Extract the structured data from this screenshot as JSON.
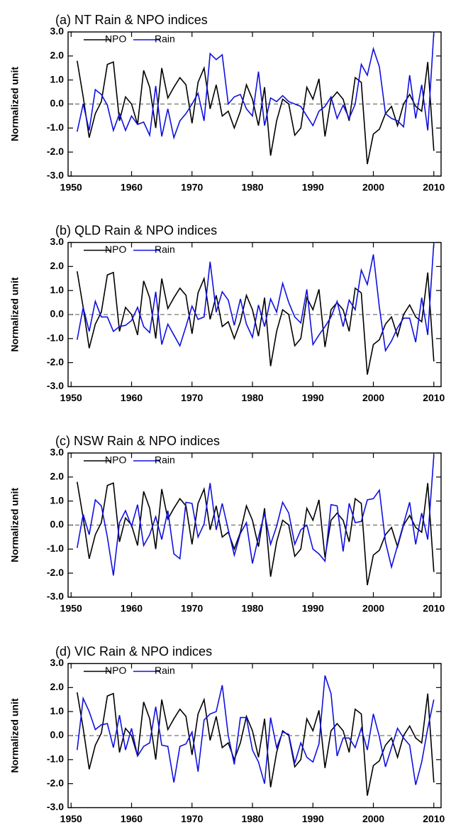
{
  "chart_data": [
    {
      "type": "line",
      "title": "(a) NT Rain & NPO indices",
      "ylabel": "Normalized unit",
      "x": [
        1951,
        1952,
        1953,
        1954,
        1955,
        1956,
        1957,
        1958,
        1959,
        1960,
        1961,
        1962,
        1963,
        1964,
        1965,
        1966,
        1967,
        1968,
        1969,
        1970,
        1971,
        1972,
        1973,
        1974,
        1975,
        1976,
        1977,
        1978,
        1979,
        1980,
        1981,
        1982,
        1983,
        1984,
        1985,
        1986,
        1987,
        1988,
        1989,
        1990,
        1991,
        1992,
        1993,
        1994,
        1995,
        1996,
        1997,
        1998,
        1999,
        2000,
        2001,
        2002,
        2003,
        2004,
        2005,
        2006,
        2007,
        2008,
        2009,
        2010
      ],
      "series": [
        {
          "name": "NPO",
          "color": "#000000",
          "values": [
            1.8,
            0.3,
            -1.4,
            -0.4,
            0.1,
            1.65,
            1.75,
            -0.7,
            0.3,
            0.0,
            -0.85,
            1.4,
            0.7,
            -1.0,
            1.5,
            0.25,
            0.7,
            1.1,
            0.8,
            -0.8,
            0.9,
            1.5,
            -0.2,
            0.8,
            -0.5,
            -0.3,
            -1.0,
            -0.3,
            0.8,
            0.2,
            -0.9,
            0.7,
            -2.15,
            -0.7,
            0.2,
            0.0,
            -1.3,
            -1.0,
            0.7,
            0.2,
            1.05,
            -1.35,
            0.2,
            0.5,
            0.2,
            -0.7,
            1.1,
            0.9,
            -2.5,
            -1.25,
            -1.05,
            -0.4,
            -0.1,
            -0.9,
            0.0,
            0.4,
            -0.1,
            -0.3,
            1.75,
            -1.95
          ]
        },
        {
          "name": "Rain",
          "color": "#1010e0",
          "values": [
            -1.15,
            0.0,
            -1.1,
            0.6,
            0.4,
            -0.05,
            -1.1,
            -0.4,
            -1.1,
            -0.5,
            -0.85,
            -0.75,
            -1.3,
            0.75,
            -1.35,
            -0.2,
            -1.4,
            -0.7,
            -0.4,
            0.0,
            0.45,
            -0.7,
            2.1,
            1.85,
            2.05,
            0.0,
            0.3,
            0.4,
            -0.2,
            -0.5,
            1.35,
            -0.9,
            0.25,
            0.1,
            0.35,
            0.1,
            0.0,
            -0.1,
            -0.5,
            -0.9,
            -0.3,
            -0.1,
            0.3,
            -0.6,
            -0.05,
            -0.6,
            0.0,
            1.65,
            1.2,
            2.3,
            1.55,
            -0.4,
            -0.6,
            -0.7,
            -0.95,
            1.2,
            -0.6,
            0.8,
            -1.1,
            3.0
          ]
        }
      ],
      "xlim": [
        1949.5,
        2011.2
      ],
      "xticks": [
        1950,
        1960,
        1970,
        1980,
        1990,
        2000,
        2010
      ],
      "ylim": [
        -3,
        3
      ],
      "yticks": [
        {
          "value": 3,
          "label": "3.0"
        },
        {
          "value": 2,
          "label": "2.0"
        },
        {
          "value": 1,
          "label": "1.0"
        },
        {
          "value": 0,
          "label": "0.0"
        },
        {
          "value": -1,
          "label": "-1.0"
        },
        {
          "value": -2,
          "label": "-2.0"
        },
        {
          "value": -3,
          "label": "-3.0"
        }
      ]
    },
    {
      "type": "line",
      "title": "(b) QLD Rain & NPO indices",
      "ylabel": "Normalized unit",
      "x": [
        1951,
        1952,
        1953,
        1954,
        1955,
        1956,
        1957,
        1958,
        1959,
        1960,
        1961,
        1962,
        1963,
        1964,
        1965,
        1966,
        1967,
        1968,
        1969,
        1970,
        1971,
        1972,
        1973,
        1974,
        1975,
        1976,
        1977,
        1978,
        1979,
        1980,
        1981,
        1982,
        1983,
        1984,
        1985,
        1986,
        1987,
        1988,
        1989,
        1990,
        1991,
        1992,
        1993,
        1994,
        1995,
        1996,
        1997,
        1998,
        1999,
        2000,
        2001,
        2002,
        2003,
        2004,
        2005,
        2006,
        2007,
        2008,
        2009,
        2010
      ],
      "series": [
        {
          "name": "NPO",
          "color": "#000000",
          "values": [
            1.8,
            0.3,
            -1.4,
            -0.4,
            0.1,
            1.65,
            1.75,
            -0.7,
            0.3,
            0.0,
            -0.85,
            1.4,
            0.7,
            -1.0,
            1.5,
            0.25,
            0.7,
            1.1,
            0.8,
            -0.8,
            0.9,
            1.5,
            -0.2,
            0.8,
            -0.5,
            -0.3,
            -1.0,
            -0.3,
            0.8,
            0.2,
            -0.9,
            0.7,
            -2.15,
            -0.7,
            0.2,
            0.0,
            -1.3,
            -1.0,
            0.7,
            0.2,
            1.05,
            -1.35,
            0.2,
            0.5,
            0.2,
            -0.7,
            1.1,
            0.9,
            -2.5,
            -1.25,
            -1.05,
            -0.4,
            -0.1,
            -0.9,
            0.0,
            0.4,
            -0.1,
            -0.3,
            1.75,
            -1.95
          ]
        },
        {
          "name": "Rain",
          "color": "#1010e0",
          "values": [
            -1.05,
            0.3,
            -0.7,
            0.55,
            -0.1,
            -0.1,
            -0.7,
            -0.5,
            -0.45,
            -0.25,
            0.3,
            -0.5,
            -0.75,
            0.95,
            -1.25,
            -0.4,
            -0.85,
            -1.3,
            -0.5,
            0.35,
            -0.2,
            -0.1,
            2.2,
            0.1,
            0.95,
            0.6,
            -0.45,
            0.65,
            -0.4,
            -0.95,
            0.4,
            -0.5,
            0.65,
            0.1,
            1.3,
            0.5,
            -0.1,
            -0.35,
            1.05,
            -1.25,
            -0.85,
            -0.5,
            -0.1,
            0.55,
            -0.5,
            0.6,
            0.2,
            1.85,
            1.25,
            2.5,
            0.3,
            -1.5,
            -1.1,
            -0.55,
            -0.15,
            -0.15,
            -1.15,
            0.7,
            -0.85,
            3.0
          ]
        }
      ],
      "xlim": [
        1949.5,
        2011.2
      ],
      "xticks": [
        1950,
        1960,
        1970,
        1980,
        1990,
        2000,
        2010
      ],
      "ylim": [
        -3,
        3
      ],
      "yticks": [
        {
          "value": 3,
          "label": "3.0"
        },
        {
          "value": 2,
          "label": "2.0"
        },
        {
          "value": 1,
          "label": "1.0"
        },
        {
          "value": 0,
          "label": "0.0"
        },
        {
          "value": -1,
          "label": "-1.0"
        },
        {
          "value": -2,
          "label": "-2.0"
        },
        {
          "value": -3,
          "label": "-3.0"
        }
      ]
    },
    {
      "type": "line",
      "title": "(c) NSW Rain & NPO indices",
      "ylabel": "Normalized unit",
      "x": [
        1951,
        1952,
        1953,
        1954,
        1955,
        1956,
        1957,
        1958,
        1959,
        1960,
        1961,
        1962,
        1963,
        1964,
        1965,
        1966,
        1967,
        1968,
        1969,
        1970,
        1971,
        1972,
        1973,
        1974,
        1975,
        1976,
        1977,
        1978,
        1979,
        1980,
        1981,
        1982,
        1983,
        1984,
        1985,
        1986,
        1987,
        1988,
        1989,
        1990,
        1991,
        1992,
        1993,
        1994,
        1995,
        1996,
        1997,
        1998,
        1999,
        2000,
        2001,
        2002,
        2003,
        2004,
        2005,
        2006,
        2007,
        2008,
        2009,
        2010
      ],
      "series": [
        {
          "name": "NPO",
          "color": "#000000",
          "values": [
            1.8,
            0.3,
            -1.4,
            -0.4,
            0.1,
            1.65,
            1.75,
            -0.7,
            0.3,
            0.0,
            -0.85,
            1.4,
            0.7,
            -1.0,
            1.5,
            0.25,
            0.7,
            1.1,
            0.8,
            -0.8,
            0.9,
            1.5,
            -0.2,
            0.8,
            -0.5,
            -0.3,
            -1.0,
            -0.3,
            0.8,
            0.2,
            -0.9,
            0.7,
            -2.15,
            -0.7,
            0.2,
            0.0,
            -1.3,
            -1.0,
            0.7,
            0.2,
            1.05,
            -1.35,
            0.2,
            0.5,
            0.2,
            -0.7,
            1.1,
            0.9,
            -2.5,
            -1.25,
            -1.05,
            -0.4,
            -0.1,
            -0.9,
            0.0,
            0.4,
            -0.1,
            -0.3,
            1.75,
            -1.95
          ]
        },
        {
          "name": "Rain",
          "color": "#1010e0",
          "values": [
            -0.95,
            0.45,
            -0.4,
            1.05,
            0.8,
            -0.5,
            -2.1,
            0.1,
            0.6,
            -0.05,
            0.85,
            -0.85,
            -0.4,
            0.35,
            -0.6,
            0.6,
            -1.2,
            -1.4,
            0.95,
            0.9,
            -0.5,
            0.05,
            1.75,
            -0.2,
            0.9,
            -0.2,
            -1.25,
            -0.35,
            0.1,
            -1.6,
            -0.5,
            0.5,
            -0.8,
            -0.05,
            0.95,
            0.5,
            -0.8,
            -0.2,
            0.0,
            -1.0,
            -1.2,
            -1.5,
            0.85,
            0.8,
            -1.1,
            0.9,
            0.1,
            0.15,
            1.05,
            1.1,
            1.45,
            -0.7,
            -1.75,
            -0.85,
            0.05,
            0.95,
            -0.8,
            0.5,
            -0.6,
            2.9
          ]
        }
      ],
      "xlim": [
        1949.5,
        2011.2
      ],
      "xticks": [
        1950,
        1960,
        1970,
        1980,
        1990,
        2000,
        2010
      ],
      "ylim": [
        -3,
        3
      ],
      "yticks": [
        {
          "value": 3,
          "label": "3.0"
        },
        {
          "value": 2,
          "label": "2.0"
        },
        {
          "value": 1,
          "label": "1.0"
        },
        {
          "value": 0,
          "label": "0.0"
        },
        {
          "value": -1,
          "label": "-1.0"
        },
        {
          "value": -2,
          "label": "-2.0"
        },
        {
          "value": -3,
          "label": "-3.0"
        }
      ]
    },
    {
      "type": "line",
      "title": "(d) VIC Rain & NPO indices",
      "ylabel": "Normalized unit",
      "x": [
        1951,
        1952,
        1953,
        1954,
        1955,
        1956,
        1957,
        1958,
        1959,
        1960,
        1961,
        1962,
        1963,
        1964,
        1965,
        1966,
        1967,
        1968,
        1969,
        1970,
        1971,
        1972,
        1973,
        1974,
        1975,
        1976,
        1977,
        1978,
        1979,
        1980,
        1981,
        1982,
        1983,
        1984,
        1985,
        1986,
        1987,
        1988,
        1989,
        1990,
        1991,
        1992,
        1993,
        1994,
        1995,
        1996,
        1997,
        1998,
        1999,
        2000,
        2001,
        2002,
        2003,
        2004,
        2005,
        2006,
        2007,
        2008,
        2009,
        2010
      ],
      "series": [
        {
          "name": "NPO",
          "color": "#000000",
          "values": [
            1.8,
            0.3,
            -1.4,
            -0.4,
            0.1,
            1.65,
            1.75,
            -0.7,
            0.3,
            0.0,
            -0.85,
            1.4,
            0.7,
            -1.0,
            1.5,
            0.25,
            0.7,
            1.1,
            0.8,
            -0.8,
            0.9,
            1.5,
            -0.2,
            0.8,
            -0.5,
            -0.3,
            -1.0,
            -0.3,
            0.8,
            0.2,
            -0.9,
            0.7,
            -2.15,
            -0.7,
            0.2,
            0.0,
            -1.3,
            -1.0,
            0.7,
            0.2,
            1.05,
            -1.35,
            0.2,
            0.5,
            0.2,
            -0.7,
            1.1,
            0.9,
            -2.5,
            -1.25,
            -1.05,
            -0.4,
            -0.1,
            -0.9,
            0.0,
            0.4,
            -0.1,
            -0.3,
            1.75,
            -1.95
          ]
        },
        {
          "name": "Rain",
          "color": "#1010e0",
          "values": [
            -0.6,
            1.55,
            1.0,
            0.25,
            0.45,
            0.5,
            -0.5,
            0.85,
            -0.6,
            0.3,
            -0.85,
            -0.45,
            -0.3,
            1.2,
            -0.4,
            -0.45,
            -1.95,
            -0.45,
            -0.35,
            0.15,
            -1.5,
            0.65,
            0.9,
            1.0,
            2.1,
            0.0,
            -1.2,
            0.75,
            0.75,
            -0.6,
            -1.1,
            -2.0,
            0.75,
            -0.5,
            0.15,
            0.05,
            -1.15,
            -0.3,
            -0.9,
            -1.1,
            -0.35,
            2.5,
            1.75,
            -0.85,
            -0.1,
            -0.1,
            -0.5,
            0.3,
            -0.6,
            0.9,
            -0.05,
            -1.3,
            -0.5,
            0.3,
            -0.1,
            -0.4,
            -2.05,
            -1.1,
            0.3,
            1.5
          ]
        }
      ],
      "xlim": [
        1949.5,
        2011.2
      ],
      "xticks": [
        1950,
        1960,
        1970,
        1980,
        1990,
        2000,
        2010
      ],
      "ylim": [
        -3,
        3
      ],
      "yticks": [
        {
          "value": 3,
          "label": "3.0"
        },
        {
          "value": 2,
          "label": "2.0"
        },
        {
          "value": 1,
          "label": "1.0"
        },
        {
          "value": 0,
          "label": "0.0"
        },
        {
          "value": -1,
          "label": "-1.0"
        },
        {
          "value": -2,
          "label": "-2.0"
        },
        {
          "value": -3,
          "label": "-3.0"
        }
      ]
    }
  ]
}
